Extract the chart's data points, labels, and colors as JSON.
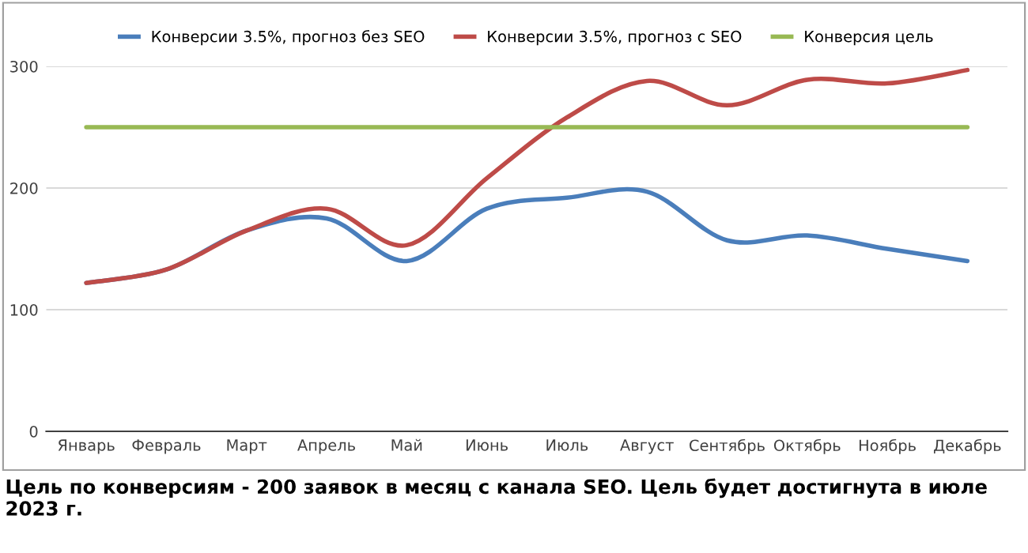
{
  "chart_data": {
    "type": "line",
    "categories": [
      "Январь",
      "Февраль",
      "Март",
      "Апрель",
      "Май",
      "Июнь",
      "Июль",
      "Август",
      "Сентябрь",
      "Октябрь",
      "Ноябрь",
      "Декабрь"
    ],
    "series": [
      {
        "name": "Конверсии 3.5%, прогноз без SEO",
        "color": "#4a7ebb",
        "values": [
          122,
          133,
          165,
          175,
          140,
          183,
          192,
          197,
          157,
          161,
          150,
          140
        ]
      },
      {
        "name": "Конверсии 3.5%, прогноз с SEO",
        "color": "#be4b48",
        "values": [
          122,
          133,
          165,
          183,
          153,
          208,
          258,
          288,
          268,
          289,
          286,
          297
        ]
      },
      {
        "name": "Конверсия цель",
        "color": "#98b954",
        "values": [
          250,
          250,
          250,
          250,
          250,
          250,
          250,
          250,
          250,
          250,
          250,
          250
        ]
      }
    ],
    "ylim": [
      0,
      300
    ],
    "yticks": [
      0,
      100,
      200,
      300
    ],
    "grid": "y",
    "legend": "top",
    "marker": "none",
    "line_style": "solid",
    "annotations": [
      "Цель по конверсиям - 200 заявок в месяц с канала SEO. Цель будет достигнута в июле 2023 г."
    ]
  }
}
